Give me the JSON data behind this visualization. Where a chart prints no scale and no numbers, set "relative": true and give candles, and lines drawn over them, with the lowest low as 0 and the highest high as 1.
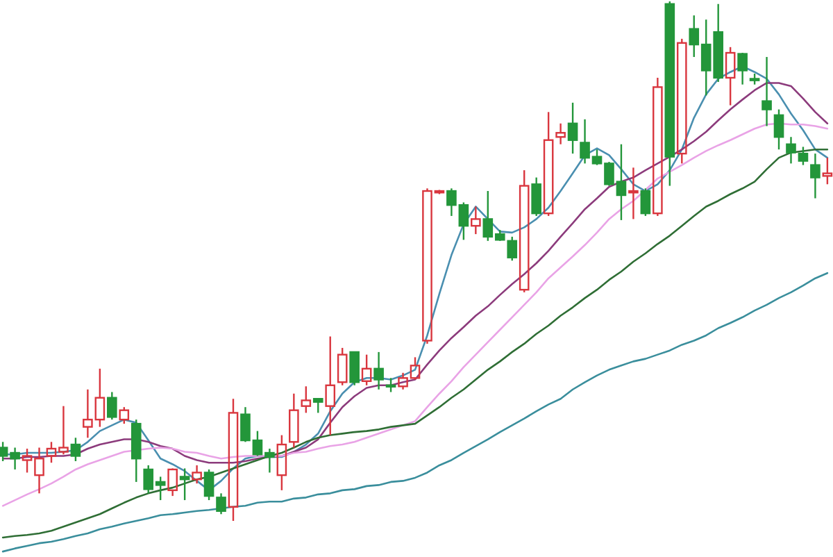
{
  "chart_data": {
    "type": "candlestick",
    "relative": true,
    "categories": [
      null,
      null,
      null,
      null,
      null,
      null,
      null,
      null,
      null,
      null,
      null,
      null,
      null,
      null,
      null,
      null,
      null,
      null,
      null,
      null,
      null,
      null,
      null,
      null,
      null,
      null,
      null,
      null,
      null,
      null,
      null,
      null,
      null,
      null,
      null,
      null,
      null,
      null,
      null,
      null,
      null,
      null,
      null,
      null,
      null,
      null,
      null,
      null,
      null,
      null,
      null,
      null,
      null,
      null,
      null,
      null,
      null,
      null,
      null,
      null,
      null,
      null,
      null,
      null,
      null,
      null,
      null,
      null,
      null
    ],
    "ohlc": [
      [
        0.141,
        0.152,
        0.115,
        0.125
      ],
      [
        0.131,
        0.141,
        0.099,
        0.12
      ],
      [
        0.117,
        0.139,
        0.093,
        0.125
      ],
      [
        0.088,
        0.141,
        0.053,
        0.12
      ],
      [
        0.125,
        0.152,
        0.112,
        0.139
      ],
      [
        0.133,
        0.221,
        0.128,
        0.141
      ],
      [
        0.147,
        0.16,
        0.115,
        0.125
      ],
      [
        0.181,
        0.253,
        0.16,
        0.195
      ],
      [
        0.195,
        0.293,
        0.181,
        0.237
      ],
      [
        0.237,
        0.248,
        0.195,
        0.2
      ],
      [
        0.195,
        0.219,
        0.187,
        0.213
      ],
      [
        0.187,
        0.195,
        0.075,
        0.12
      ],
      [
        0.099,
        0.107,
        0.053,
        0.061
      ],
      [
        0.075,
        0.085,
        0.04,
        0.069
      ],
      [
        0.059,
        0.101,
        0.048,
        0.099
      ],
      [
        0.085,
        0.101,
        0.04,
        0.08
      ],
      [
        0.08,
        0.107,
        0.072,
        0.093
      ],
      [
        0.093,
        0.099,
        0.04,
        0.048
      ],
      [
        0.045,
        0.053,
        0.013,
        0.019
      ],
      [
        0.027,
        0.235,
        0,
        0.208
      ],
      [
        0.205,
        0.219,
        0.152,
        0.155
      ],
      [
        0.155,
        0.173,
        0.125,
        0.128
      ],
      [
        0.131,
        0.139,
        0.093,
        0.123
      ],
      [
        0.088,
        0.165,
        0.059,
        0.147
      ],
      [
        0.152,
        0.245,
        0.141,
        0.213
      ],
      [
        0.221,
        0.259,
        0.208,
        0.232
      ],
      [
        0.235,
        0.235,
        0.208,
        0.229
      ],
      [
        0.221,
        0.355,
        0.165,
        0.261
      ],
      [
        0.267,
        0.333,
        0.261,
        0.32
      ],
      [
        0.325,
        0.325,
        0.261,
        0.267
      ],
      [
        0.269,
        0.32,
        0.261,
        0.293
      ],
      [
        0.293,
        0.325,
        0.253,
        0.272
      ],
      [
        0.261,
        0.275,
        0.248,
        0.259
      ],
      [
        0.259,
        0.285,
        0.253,
        0.275
      ],
      [
        0.275,
        0.315,
        0.272,
        0.299
      ],
      [
        0.347,
        0.64,
        0.341,
        0.635
      ],
      [
        0.632,
        0.637,
        0.629,
        0.635
      ],
      [
        0.635,
        0.64,
        0.587,
        0.608
      ],
      [
        0.608,
        0.613,
        0.541,
        0.568
      ],
      [
        0.568,
        0.605,
        0.552,
        0.581
      ],
      [
        0.581,
        0.635,
        0.539,
        0.547
      ],
      [
        0.552,
        0.56,
        0.539,
        0.541
      ],
      [
        0.539,
        0.547,
        0.501,
        0.507
      ],
      [
        0.445,
        0.675,
        0.44,
        0.645
      ],
      [
        0.648,
        0.661,
        0.587,
        0.592
      ],
      [
        0.592,
        0.787,
        0.587,
        0.733
      ],
      [
        0.739,
        0.765,
        0.725,
        0.747
      ],
      [
        0.765,
        0.805,
        0.707,
        0.733
      ],
      [
        0.728,
        0.773,
        0.688,
        0.699
      ],
      [
        0.701,
        0.715,
        0.685,
        0.688
      ],
      [
        0.688,
        0.691,
        0.645,
        0.648
      ],
      [
        0.653,
        0.725,
        0.579,
        0.627
      ],
      [
        0.632,
        0.68,
        0.581,
        0.635
      ],
      [
        0.635,
        0.64,
        0.587,
        0.592
      ],
      [
        0.592,
        0.853,
        0.587,
        0.835
      ],
      [
        0.995,
        1,
        0.645,
        0.701
      ],
      [
        0.707,
        0.928,
        0.688,
        0.92
      ],
      [
        0.947,
        0.973,
        0.893,
        0.917
      ],
      [
        0.917,
        0.965,
        0.819,
        0.867
      ],
      [
        0.941,
        0.995,
        0.845,
        0.853
      ],
      [
        0.853,
        0.912,
        0.8,
        0.901
      ],
      [
        0.899,
        0.901,
        0.84,
        0.867
      ],
      [
        0.851,
        0.861,
        0.84,
        0.848
      ],
      [
        0.808,
        0.893,
        0.76,
        0.792
      ],
      [
        0.781,
        0.792,
        0.715,
        0.739
      ],
      [
        0.725,
        0.739,
        0.688,
        0.709
      ],
      [
        0.707,
        0.72,
        0.685,
        0.693
      ],
      [
        0.685,
        0.707,
        0.621,
        0.661
      ],
      [
        0.664,
        0.699,
        0.648,
        0.669
      ]
    ],
    "colors": [
      "#23963a",
      "#23963a",
      "#d9363e",
      "#d9363e",
      "#d9363e",
      "#d9363e",
      "#23963a",
      "#d9363e",
      "#d9363e",
      "#23963a",
      "#d9363e",
      "#23963a",
      "#23963a",
      "#23963a",
      "#d9363e",
      "#23963a",
      "#d9363e",
      "#23963a",
      "#23963a",
      "#d9363e",
      "#23963a",
      "#23963a",
      "#23963a",
      "#d9363e",
      "#d9363e",
      "#d9363e",
      "#23963a",
      "#d9363e",
      "#d9363e",
      "#23963a",
      "#d9363e",
      "#23963a",
      "#23963a",
      "#d9363e",
      "#d9363e",
      "#d9363e",
      "#d9363e",
      "#23963a",
      "#23963a",
      "#d9363e",
      "#23963a",
      "#23963a",
      "#23963a",
      "#d9363e",
      "#23963a",
      "#d9363e",
      "#d9363e",
      "#23963a",
      "#23963a",
      "#23963a",
      "#23963a",
      "#23963a",
      "#d9363e",
      "#23963a",
      "#d9363e",
      "#23963a",
      "#d9363e",
      "#23963a",
      "#23963a",
      "#23963a",
      "#d9363e",
      "#23963a",
      "#23963a",
      "#23963a",
      "#23963a",
      "#23963a",
      "#23963a",
      "#23963a",
      "#d9363e"
    ],
    "series": [
      {
        "type": "line",
        "color": "#4a8fb0",
        "values": [
          0.128,
          0.128,
          0.131,
          0.131,
          0.131,
          0.133,
          0.136,
          0.152,
          0.173,
          0.184,
          0.195,
          0.189,
          0.155,
          0.12,
          0.109,
          0.096,
          0.077,
          0.059,
          0.077,
          0.101,
          0.12,
          0.125,
          0.123,
          0.123,
          0.133,
          0.147,
          0.168,
          0.211,
          0.245,
          0.267,
          0.275,
          0.275,
          0.272,
          0.28,
          0.291,
          0.357,
          0.437,
          0.512,
          0.571,
          0.605,
          0.581,
          0.557,
          0.555,
          0.565,
          0.581,
          0.603,
          0.635,
          0.669,
          0.704,
          0.717,
          0.704,
          0.677,
          0.648,
          0.635,
          0.648,
          0.675,
          0.715,
          0.776,
          0.821,
          0.851,
          0.864,
          0.875,
          0.864,
          0.851,
          0.821,
          0.784,
          0.752,
          0.715,
          0.699
        ]
      },
      {
        "type": "line",
        "color": "#8c3b7c",
        "values": [
          0.12,
          0.12,
          0.123,
          0.123,
          0.125,
          0.125,
          0.128,
          0.139,
          0.147,
          0.152,
          0.157,
          0.157,
          0.152,
          0.144,
          0.139,
          0.125,
          0.117,
          0.112,
          0.112,
          0.112,
          0.115,
          0.12,
          0.123,
          0.125,
          0.133,
          0.141,
          0.157,
          0.189,
          0.219,
          0.24,
          0.256,
          0.261,
          0.261,
          0.267,
          0.272,
          0.301,
          0.328,
          0.352,
          0.373,
          0.395,
          0.413,
          0.435,
          0.456,
          0.475,
          0.496,
          0.52,
          0.547,
          0.573,
          0.6,
          0.621,
          0.643,
          0.653,
          0.661,
          0.675,
          0.688,
          0.701,
          0.715,
          0.731,
          0.749,
          0.771,
          0.792,
          0.811,
          0.829,
          0.843,
          0.843,
          0.837,
          0.813,
          0.787,
          0.765
        ]
      },
      {
        "type": "line",
        "color": "#e9a3e6",
        "values": [
          0.029,
          0.04,
          0.051,
          0.061,
          0.072,
          0.085,
          0.099,
          0.109,
          0.117,
          0.125,
          0.133,
          0.136,
          0.139,
          0.141,
          0.139,
          0.133,
          0.131,
          0.125,
          0.12,
          0.123,
          0.125,
          0.125,
          0.125,
          0.125,
          0.131,
          0.133,
          0.139,
          0.144,
          0.147,
          0.152,
          0.16,
          0.168,
          0.176,
          0.184,
          0.192,
          0.219,
          0.245,
          0.269,
          0.296,
          0.32,
          0.344,
          0.368,
          0.392,
          0.416,
          0.44,
          0.467,
          0.488,
          0.509,
          0.531,
          0.555,
          0.581,
          0.6,
          0.616,
          0.637,
          0.659,
          0.672,
          0.685,
          0.699,
          0.712,
          0.723,
          0.733,
          0.744,
          0.755,
          0.763,
          0.765,
          0.763,
          0.763,
          0.76,
          0.755
        ]
      },
      {
        "type": "line",
        "color": "#2f6e35",
        "values": [
          -0.032,
          -0.029,
          -0.027,
          -0.024,
          -0.019,
          -0.011,
          -0.003,
          0.005,
          0.013,
          0.024,
          0.035,
          0.045,
          0.053,
          0.059,
          0.064,
          0.072,
          0.08,
          0.085,
          0.093,
          0.101,
          0.109,
          0.117,
          0.125,
          0.131,
          0.141,
          0.152,
          0.16,
          0.165,
          0.168,
          0.171,
          0.173,
          0.176,
          0.181,
          0.184,
          0.187,
          0.203,
          0.219,
          0.237,
          0.253,
          0.272,
          0.291,
          0.307,
          0.325,
          0.341,
          0.36,
          0.376,
          0.395,
          0.411,
          0.429,
          0.445,
          0.464,
          0.48,
          0.499,
          0.515,
          0.533,
          0.549,
          0.568,
          0.587,
          0.605,
          0.616,
          0.629,
          0.64,
          0.653,
          0.677,
          0.699,
          0.709,
          0.712,
          0.715,
          0.715
        ]
      },
      {
        "type": "line",
        "color": "#3a8e9c",
        "values": [
          -0.059,
          -0.053,
          -0.048,
          -0.043,
          -0.04,
          -0.035,
          -0.029,
          -0.024,
          -0.016,
          -0.011,
          -0.005,
          0,
          0.005,
          0.011,
          0.013,
          0.016,
          0.019,
          0.021,
          0.024,
          0.027,
          0.029,
          0.035,
          0.037,
          0.037,
          0.043,
          0.045,
          0.051,
          0.053,
          0.059,
          0.061,
          0.067,
          0.069,
          0.075,
          0.077,
          0.083,
          0.093,
          0.107,
          0.117,
          0.131,
          0.144,
          0.157,
          0.171,
          0.184,
          0.197,
          0.211,
          0.224,
          0.235,
          0.253,
          0.267,
          0.28,
          0.291,
          0.299,
          0.307,
          0.312,
          0.32,
          0.328,
          0.339,
          0.347,
          0.357,
          0.371,
          0.381,
          0.392,
          0.405,
          0.416,
          0.429,
          0.44,
          0.453,
          0.467,
          0.477
        ]
      }
    ]
  }
}
